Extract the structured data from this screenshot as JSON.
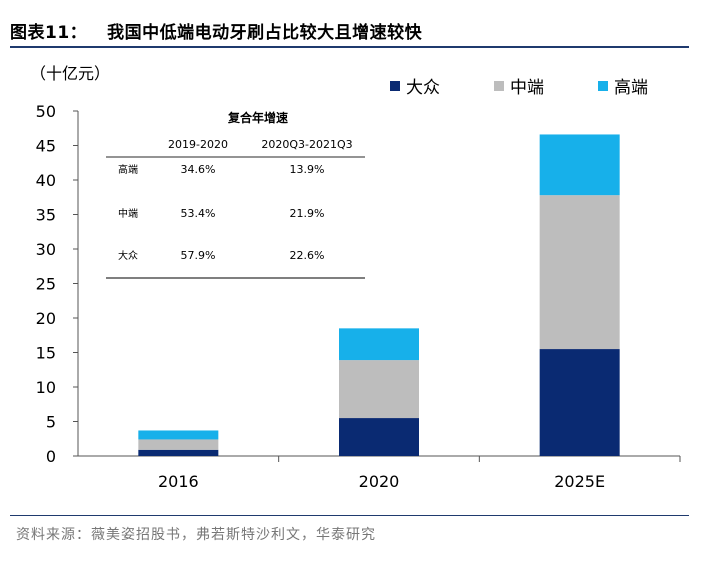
{
  "figure_title": {
    "number": "图表11：",
    "text": "我国中低端电动牙刷占比较大且增速较快"
  },
  "unit_label": "（十亿元）",
  "source_note": "资料来源：薇美姿招股书，弗若斯特沙利文，华泰研究",
  "colors": {
    "大众": "#0a2a72",
    "中端": "#bdbdbd",
    "高端": "#17b0ea",
    "rule": "#1f3a6e"
  },
  "chart_data": {
    "type": "bar",
    "stacked": true,
    "categories": [
      "2016",
      "2020",
      "2025E"
    ],
    "series": [
      {
        "name": "大众",
        "values": [
          0.9,
          5.5,
          15.5
        ]
      },
      {
        "name": "中端",
        "values": [
          1.5,
          8.4,
          22.3
        ]
      },
      {
        "name": "高端",
        "values": [
          1.3,
          4.6,
          8.8
        ]
      }
    ],
    "ylim": [
      0,
      50
    ],
    "yticks": [
      0,
      5,
      10,
      15,
      20,
      25,
      30,
      35,
      40,
      45,
      50
    ],
    "grid": false,
    "legend_position": "top-right"
  },
  "inset_table": {
    "title": "复合年增速",
    "columns": [
      "2019-2020",
      "2020Q3-2021Q3"
    ],
    "rows": [
      {
        "label": "高端",
        "values": [
          "34.6%",
          "13.9%"
        ]
      },
      {
        "label": "中端",
        "values": [
          "53.4%",
          "21.9%"
        ]
      },
      {
        "label": "大众",
        "values": [
          "57.9%",
          "22.6%"
        ]
      }
    ]
  }
}
